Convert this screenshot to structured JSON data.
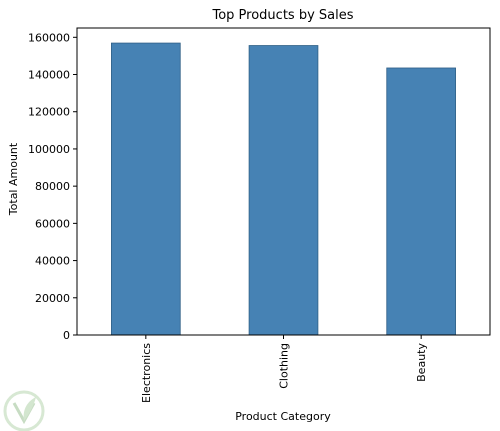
{
  "chart_data": {
    "type": "bar",
    "title": "Top Products by Sales",
    "xlabel": "Product Category",
    "ylabel": "Total Amount",
    "categories": [
      "Electronics",
      "Clothing",
      "Beauty"
    ],
    "values": [
      156905,
      155580,
      143515
    ],
    "ylim": [
      0,
      165000
    ],
    "yticks": [
      0,
      20000,
      40000,
      60000,
      80000,
      100000,
      120000,
      140000,
      160000
    ],
    "ytick_labels": [
      "0",
      "20000",
      "40000",
      "60000",
      "80000",
      "100000",
      "120000",
      "140000",
      "160000"
    ],
    "bar_color": "#4682b4",
    "bar_edge_color": "#2f5f86",
    "grid": false,
    "legend": "none"
  },
  "watermark": {
    "icon": "leaf-shield-icon",
    "color": "#c7dcc3"
  }
}
